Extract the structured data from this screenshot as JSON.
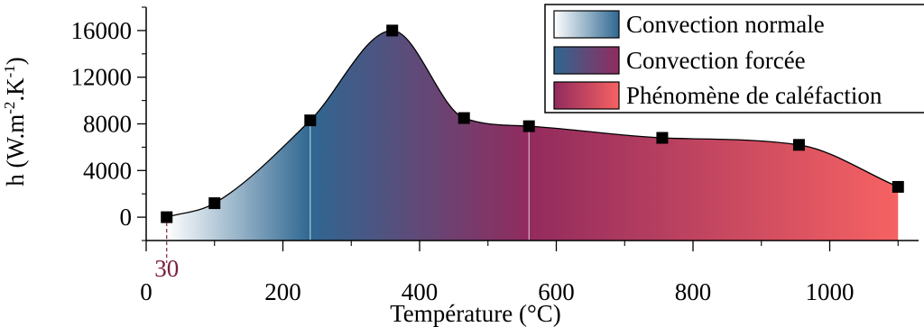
{
  "chart_data": {
    "type": "area",
    "xlabel": "Température (°C)",
    "ylabel_main": "h (W.m",
    "ylabel_sup1": "-2",
    "ylabel_mid": ".K",
    "ylabel_sup2": "-1",
    "ylabel_end": ")",
    "xlim": [
      0,
      1130
    ],
    "ylim": [
      -2000,
      18000
    ],
    "x_ticks": [
      0,
      200,
      400,
      600,
      800,
      1000
    ],
    "x_tick_labels": [
      "0",
      "200",
      "400",
      "600",
      "800",
      "1000"
    ],
    "y_ticks": [
      0,
      4000,
      8000,
      12000,
      16000
    ],
    "y_tick_labels": [
      "0",
      "4000",
      "8000",
      "12000",
      "16000"
    ],
    "x": [
      30,
      100,
      240,
      360,
      465,
      560,
      755,
      955,
      1100
    ],
    "y": [
      0,
      1200,
      8300,
      16000,
      8500,
      7800,
      6800,
      6200,
      2600
    ],
    "regions": [
      {
        "name": "Convection normale",
        "x_range": [
          30,
          240
        ],
        "colors": [
          "#ffffff",
          "#2f6791"
        ]
      },
      {
        "name": "Convection forcée",
        "x_range": [
          240,
          560
        ],
        "colors": [
          "#2f6791",
          "#922b5e"
        ]
      },
      {
        "name": "Phénomène de caléfaction",
        "x_range": [
          560,
          1100
        ],
        "colors": [
          "#922b5e",
          "#f66262"
        ]
      }
    ],
    "annotation": {
      "text": "30",
      "x": 30,
      "color": "#7a1f3d"
    },
    "legend_position": "top-right",
    "grid": false
  }
}
